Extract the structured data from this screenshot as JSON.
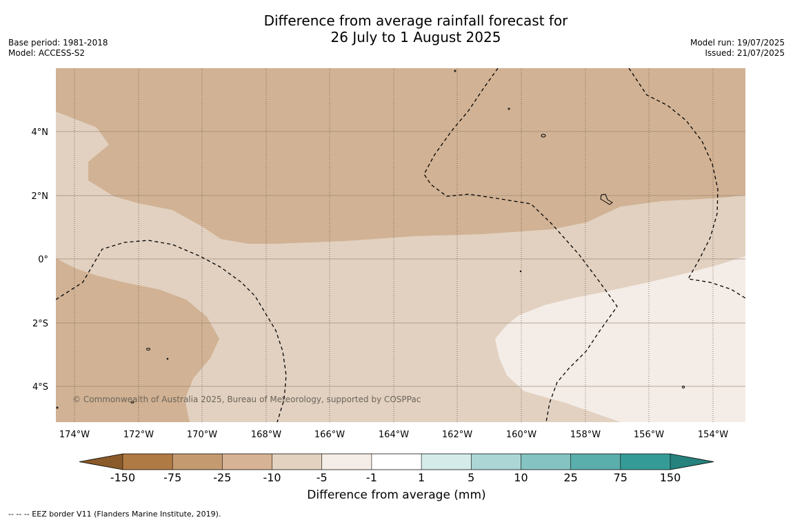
{
  "title": {
    "line1": "Difference from average rainfall forecast for",
    "line2": "26 July to 1 August 2025"
  },
  "meta_left": {
    "base_period": "Base period: 1981-2018",
    "model": "Model: ACCESS-S2"
  },
  "meta_right": {
    "model_run": "Model run: 19/07/2025",
    "issued": "Issued: 21/07/2025"
  },
  "map": {
    "copyright": "© Commonwealth of Australia 2025, Bureau of Meteorology, supported by COSPPac",
    "lon_ticks": [
      "174°W",
      "172°W",
      "170°W",
      "168°W",
      "166°W",
      "164°W",
      "162°W",
      "160°W",
      "158°W",
      "156°W",
      "154°W"
    ],
    "lat_ticks": [
      "4°N",
      "2°N",
      "0°",
      "2°S",
      "4°S"
    ]
  },
  "colorbar": {
    "title": "Difference from average (mm)",
    "tick_labels": [
      "-150",
      "-75",
      "-25",
      "-10",
      "-5",
      "-1",
      "1",
      "5",
      "10",
      "25",
      "75",
      "150"
    ],
    "colors": [
      "#8a5a2b",
      "#b07a45",
      "#c49a70",
      "#d6b394",
      "#e4d2c0",
      "#f5ede7",
      "#ffffff",
      "#d4ebea",
      "#acd6d5",
      "#84c3c1",
      "#5aaeab",
      "#359b96",
      "#26827c"
    ]
  },
  "footnote": "--  --  -- EEZ border V11 (Flanders Marine Institute, 2019)."
}
